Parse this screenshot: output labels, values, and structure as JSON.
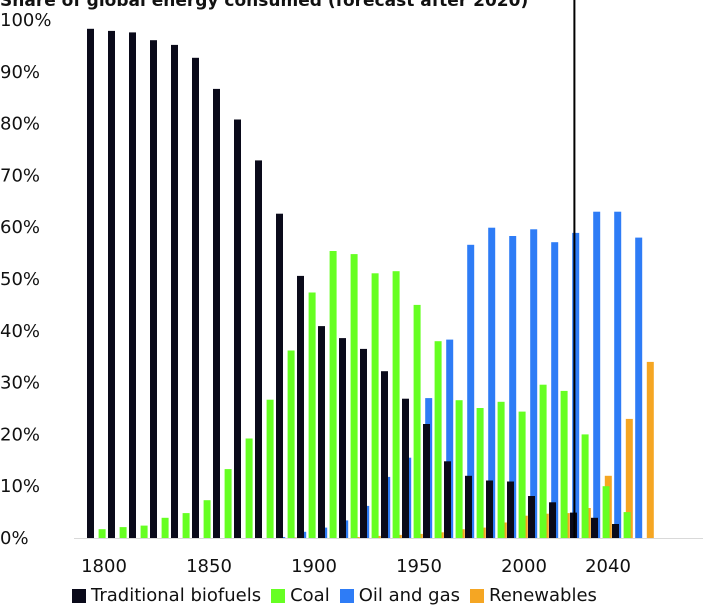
{
  "chart_data": {
    "type": "bar",
    "title": "Share of global energy consumed (forecast after 2020)",
    "ylim": [
      0,
      100
    ],
    "yticks": [
      "0%",
      "10%",
      "20%",
      "30%",
      "40%",
      "50%",
      "60%",
      "70%",
      "80%",
      "90%",
      "100%"
    ],
    "xticks": [
      "1800",
      "1850",
      "1900",
      "1950",
      "2000",
      "2040"
    ],
    "categories": [
      "1800",
      "1810",
      "1820",
      "1830",
      "1840",
      "1850",
      "1860",
      "1870",
      "1880",
      "1890",
      "1900",
      "1910",
      "1920",
      "1930",
      "1940",
      "1950",
      "1960",
      "1970",
      "1980",
      "1990",
      "2000",
      "2010",
      "2020",
      "2030",
      "2040",
      "2050"
    ],
    "forecast_divider_after": "2020",
    "series": [
      {
        "name": "Traditional biofuels",
        "color": "#0a0a1a",
        "values": [
          98.3,
          97.9,
          97.6,
          96.1,
          95.2,
          92.7,
          86.7,
          80.8,
          72.9,
          62.6,
          50.6,
          40.9,
          38.6,
          36.5,
          32.2,
          26.9,
          22.0,
          14.8,
          12.0,
          11.1,
          10.9,
          8.1,
          6.9,
          4.9,
          3.9,
          2.7
        ]
      },
      {
        "name": "Coal",
        "color": "#66ff22",
        "values": [
          1.7,
          2.1,
          2.4,
          3.9,
          4.8,
          7.3,
          13.3,
          19.2,
          26.7,
          36.2,
          47.4,
          55.4,
          54.8,
          51.1,
          51.5,
          45.0,
          38.0,
          26.6,
          25.1,
          26.3,
          24.4,
          29.6,
          28.4,
          20.0,
          10.0,
          5.0
        ]
      },
      {
        "name": "Oil and gas",
        "color": "#2e7cf6",
        "values": [
          0.0,
          0.0,
          0.0,
          0.0,
          0.0,
          0.0,
          0.0,
          0.0,
          0.2,
          1.2,
          2.0,
          3.4,
          6.2,
          11.8,
          15.5,
          27.0,
          38.3,
          56.6,
          59.9,
          58.3,
          59.6,
          57.1,
          58.9,
          63.0,
          63.0,
          58.0
        ]
      },
      {
        "name": "Renewables",
        "color": "#f5a623",
        "values": [
          0.0,
          0.0,
          0.0,
          0.0,
          0.0,
          0.0,
          0.0,
          0.0,
          0.1,
          0.0,
          0.0,
          0.2,
          0.4,
          0.6,
          0.8,
          1.1,
          1.7,
          2.0,
          3.0,
          4.3,
          4.7,
          4.8,
          5.8,
          12.0,
          23.0,
          34.0
        ]
      }
    ],
    "extra": {
      "last_category_overflow": true
    },
    "legend_position": "bottom",
    "grid": false
  }
}
